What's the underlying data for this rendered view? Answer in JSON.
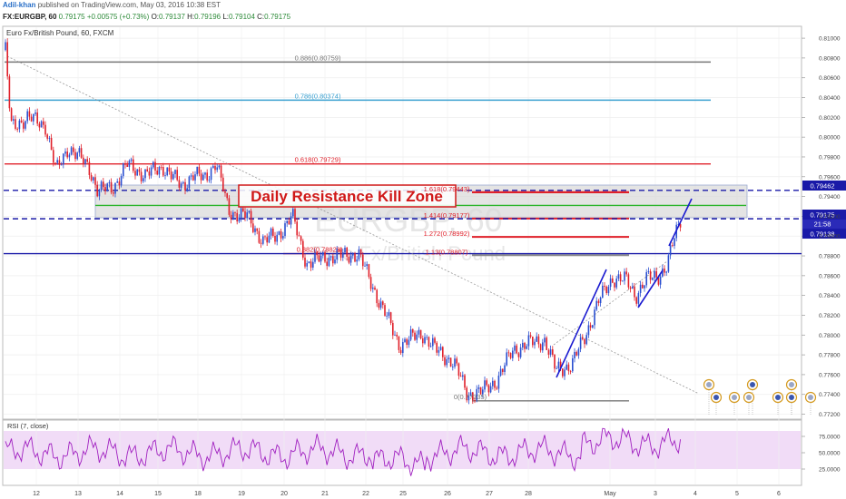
{
  "header": {
    "author": "Adil-khan",
    "published": "published on TradingView.com, May 03, 2016 10:38 EST",
    "symbol": "FX:EURGBP, 60",
    "last": "0.79175",
    "change": "+0.00575 (+0.73%)",
    "ohlc": [
      {
        "label": "O:",
        "value": "0.79137"
      },
      {
        "label": "H:",
        "value": "0.79196"
      },
      {
        "label": "L:",
        "value": "0.79104"
      },
      {
        "label": "C:",
        "value": "0.79175"
      }
    ]
  },
  "chart_title": "Euro Fx/British Pound, 60, FXCM",
  "watermark": {
    "symbol": "EURGBP, 60",
    "name": "Euro Fx/British Pound"
  },
  "annotation": "Daily Resistance Kill Zone",
  "price_badges": {
    "line1": "0.79462",
    "line2": "0.79175",
    "timer": "21:58",
    "line3": "0.79138"
  },
  "rsi_label": "RSI (7, close)",
  "colors": {
    "up": "#2a4fd0",
    "down": "#e0202a",
    "fib": "#e0202a",
    "blue_level": "#1a1aa8",
    "gray_level": "#777777",
    "teal_level": "#3aa0d0",
    "green_level": "#2db52d",
    "zone_fill": "#d8d8d8",
    "rsi_line": "#a020c0",
    "rsi_band": "#f1dcf7"
  },
  "chart_data": {
    "type": "candlestick",
    "title": "Euro Fx/British Pound, 60, FXCM",
    "ylim": [
      0.7715,
      0.8112
    ],
    "y_ticks": [
      "0.81000",
      "0.80800",
      "0.80600",
      "0.80400",
      "0.80200",
      "0.80000",
      "0.79800",
      "0.79600",
      "0.79400",
      "0.79200",
      "0.79000",
      "0.78800",
      "0.78600",
      "0.78400",
      "0.78200",
      "0.78000",
      "0.77800",
      "0.77600",
      "0.77400",
      "0.77200"
    ],
    "x_ticks": [
      "12",
      "13",
      "14",
      "15",
      "18",
      "19",
      "20",
      "21",
      "22",
      "25",
      "26",
      "27",
      "28",
      "May",
      "3",
      "4",
      "5",
      "6"
    ],
    "fib_levels": [
      {
        "label": "0.886(0.80759)",
        "value": 0.80759,
        "color": "gray"
      },
      {
        "label": "0.786(0.80374)",
        "value": 0.80374,
        "color": "teal"
      },
      {
        "label": "0.618(0.79729)",
        "value": 0.79729,
        "color": "red"
      },
      {
        "label": "0.382(0.78823)",
        "value": 0.78823,
        "color": "red"
      },
      {
        "label": "0(0.77335)",
        "value": 0.77335,
        "color": "gray"
      }
    ],
    "extension_levels": [
      {
        "label": "1.618(0.79443)",
        "value": 0.79443
      },
      {
        "label": "1.414(0.79177)",
        "value": 0.79177
      },
      {
        "label": "1.272(0.78992)",
        "value": 0.78992
      },
      {
        "label": "1.13(0.78807)",
        "value": 0.78807
      }
    ],
    "horizontal_levels": [
      0.79462,
      0.79175,
      0.78823
    ],
    "green_level": 0.7931,
    "resistance_zone": [
      0.79138,
      0.79462
    ],
    "rsi": {
      "label": "RSI (7, close)",
      "ticks": [
        "75.0000",
        "50.0000",
        "25.0000"
      ],
      "band": [
        30,
        70
      ]
    }
  }
}
